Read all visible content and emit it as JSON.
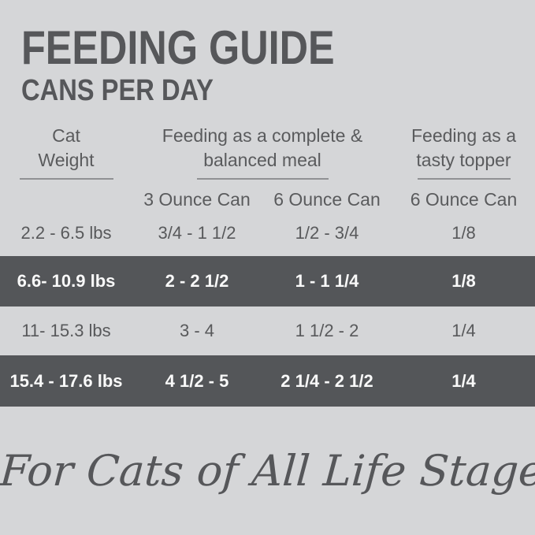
{
  "page": {
    "title": "FEEDING GUIDE",
    "subtitle": "CANS PER DAY",
    "footer_script": "For Cats of All Life Stages"
  },
  "table": {
    "column_groups": {
      "weight": {
        "line1": "Cat",
        "line2": "Weight"
      },
      "complete_meal": {
        "line1": "Feeding as a complete &",
        "line2": "balanced meal"
      },
      "tasty_topper": {
        "line1": "Feeding as a",
        "line2": "tasty topper"
      }
    },
    "sub_headers": {
      "complete_3oz": "3 Ounce Can",
      "complete_6oz": "6 Ounce Can",
      "topper_6oz": "6 Ounce Can"
    },
    "rows": [
      {
        "weight": "2.2 - 6.5 lbs",
        "complete_3oz": "3/4 - 1 1/2",
        "complete_6oz": "1/2 - 3/4",
        "topper_6oz": "1/8",
        "highlighted": false
      },
      {
        "weight": "6.6- 10.9 lbs",
        "complete_3oz": "2 - 2 1/2",
        "complete_6oz": "1 - 1 1/4",
        "topper_6oz": "1/8",
        "highlighted": true
      },
      {
        "weight": "11- 15.3 lbs",
        "complete_3oz": "3 - 4",
        "complete_6oz": "1 1/2 - 2",
        "topper_6oz": "1/4",
        "highlighted": false
      },
      {
        "weight": "15.4 - 17.6 lbs",
        "complete_3oz": "4 1/2 - 5",
        "complete_6oz": "2 1/4 - 2 1/2",
        "topper_6oz": "1/4",
        "highlighted": true
      }
    ]
  },
  "colors": {
    "background": "#d5d6d8",
    "text_dark": "#58595b",
    "row_highlight_background": "#545659",
    "row_highlight_text": "#f9f9f9",
    "header_underline": "#909194"
  }
}
